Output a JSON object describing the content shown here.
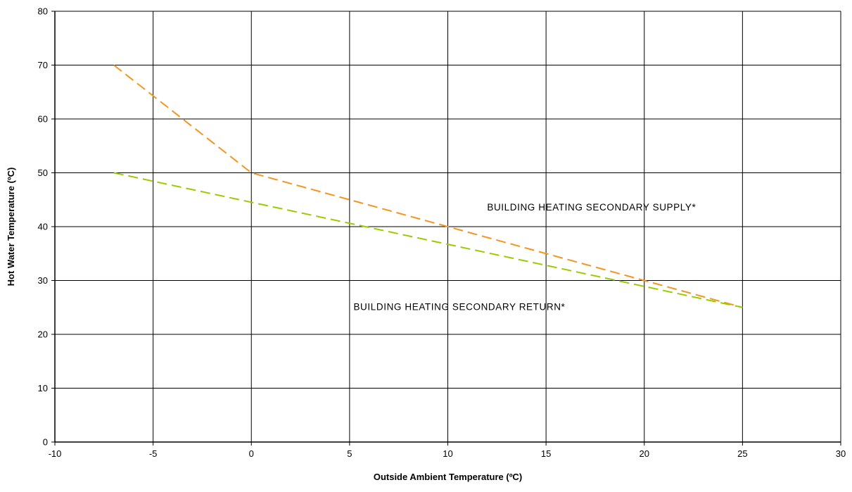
{
  "chart_data": {
    "type": "line",
    "title": "",
    "xlabel": "Outside Ambient Temperature (ºC)",
    "ylabel": "Hot Water Temperature (ºC)",
    "xlim": [
      -10,
      30
    ],
    "ylim": [
      0,
      80
    ],
    "xticks": [
      "-10",
      "-5",
      "0",
      "5",
      "10",
      "15",
      "20",
      "25",
      "30"
    ],
    "yticks": [
      "0",
      "10",
      "20",
      "30",
      "40",
      "50",
      "60",
      "70",
      "80"
    ],
    "grid": true,
    "legend": "none",
    "series": [
      {
        "name": "BUILDING HEATING SECONDARY SUPPLY*",
        "color": "#F7941D",
        "dashed": true,
        "x": [
          -7,
          0,
          25
        ],
        "y": [
          70,
          50,
          25
        ]
      },
      {
        "name": "BUILDING HEATING SECONDARY RETURN*",
        "color": "#99CC00",
        "dashed": true,
        "x": [
          -7,
          25
        ],
        "y": [
          50,
          25
        ]
      }
    ],
    "annotations": [
      {
        "text": "BUILDING HEATING SECONDARY SUPPLY*",
        "x": 12,
        "y": 43
      },
      {
        "text": "BUILDING HEATING SECONDARY RETURN*",
        "x": 5.2,
        "y": 24.5
      }
    ]
  }
}
